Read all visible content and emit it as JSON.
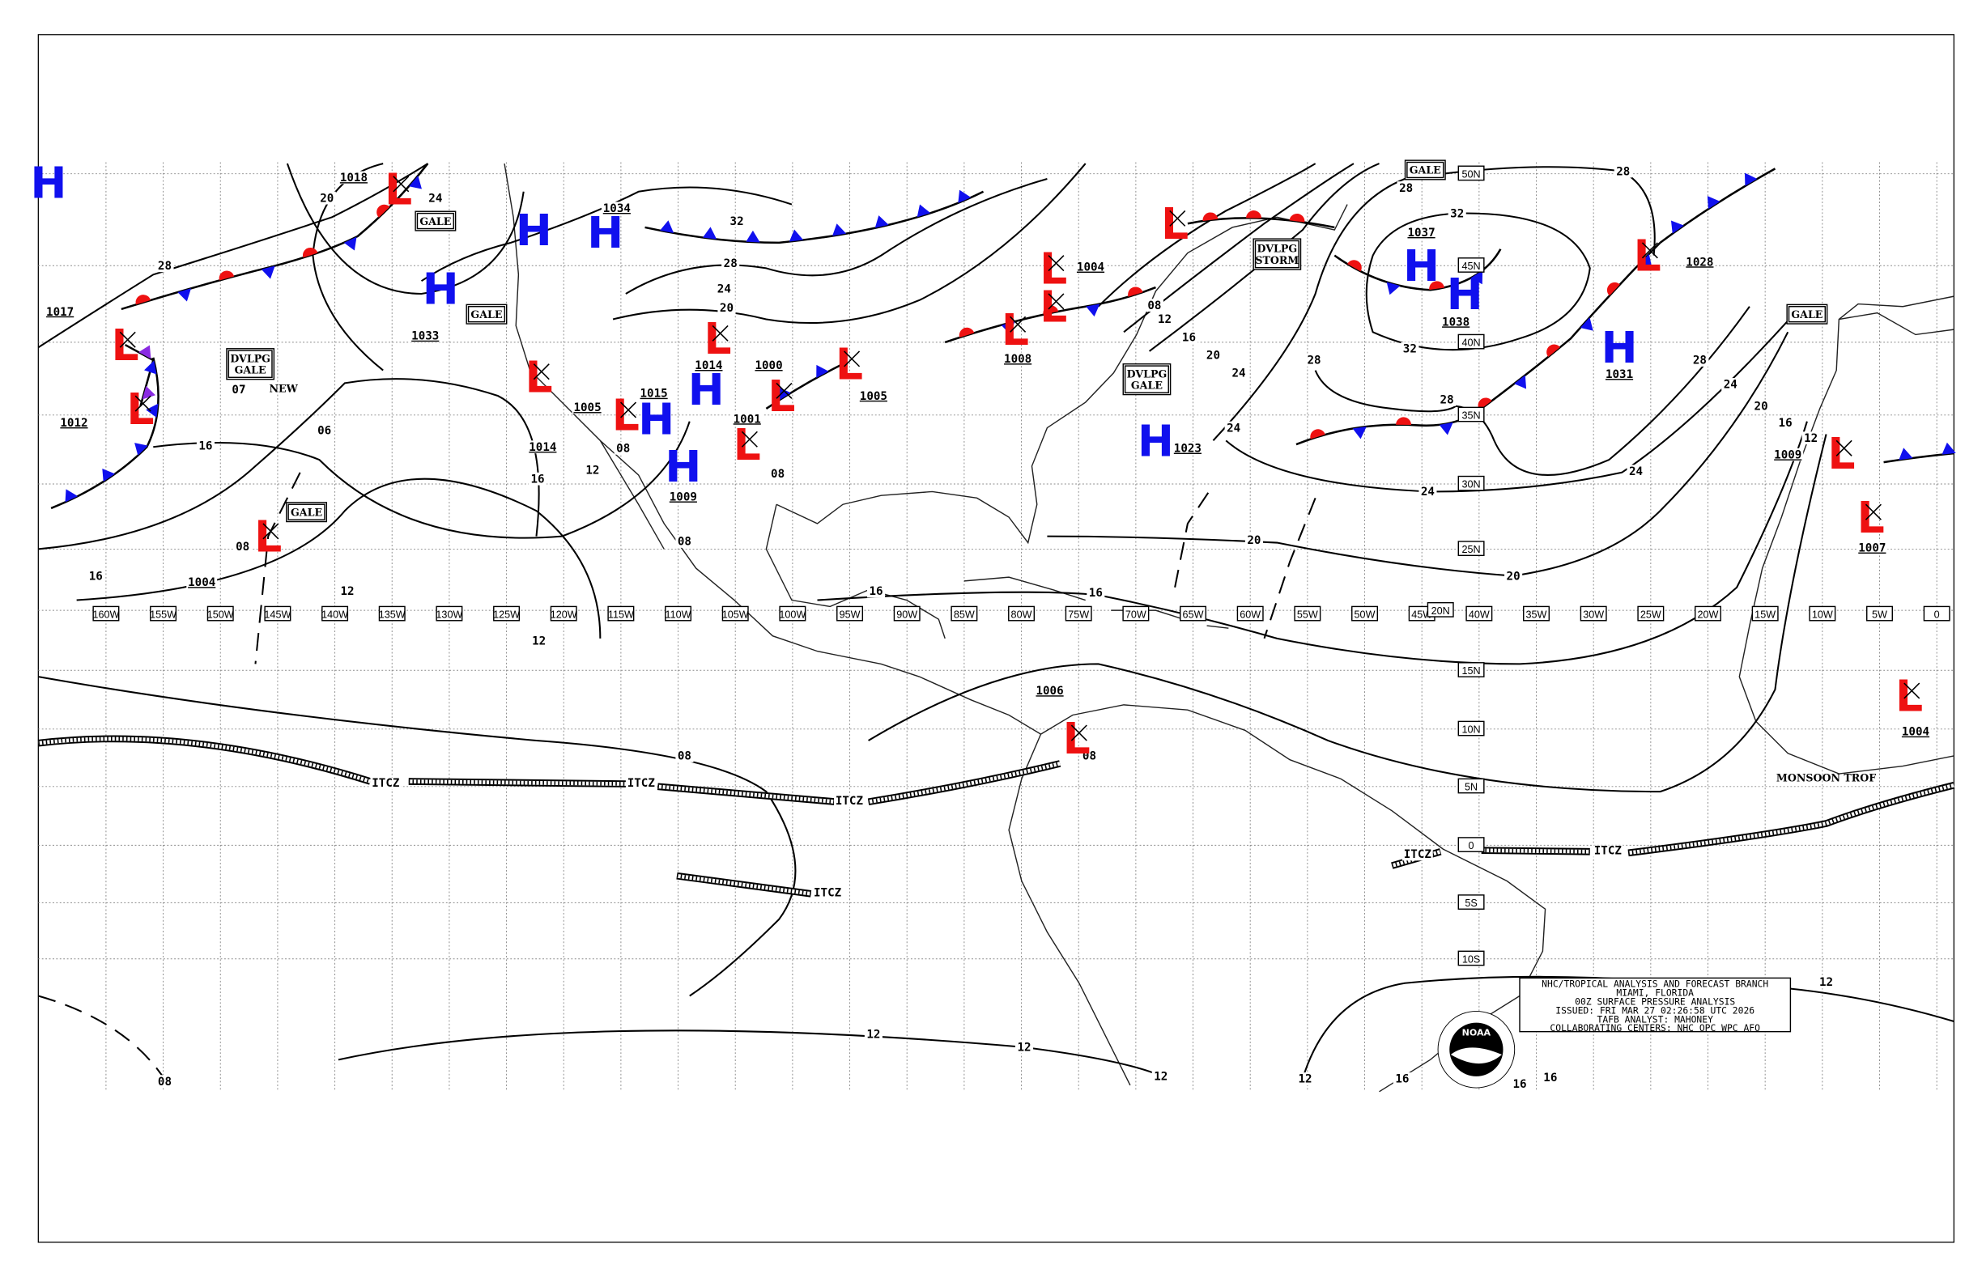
{
  "info_box": {
    "line1": "NHC/TROPICAL ANALYSIS AND FORECAST BRANCH",
    "line2": "MIAMI, FLORIDA",
    "line3": "00Z SURFACE PRESSURE ANALYSIS",
    "line4": "ISSUED: FRI MAR 27 02:26:58 UTC 2026",
    "line5": "TAFB ANALYST: MAHONEY",
    "line6": "COLLABORATING CENTERS: NHC OPC WPC AFO"
  },
  "logo": {
    "text": "NOAA"
  },
  "longitude_labels": [
    "160W",
    "155W",
    "150W",
    "145W",
    "140W",
    "135W",
    "130W",
    "125W",
    "120W",
    "115W",
    "110W",
    "105W",
    "100W",
    "95W",
    "90W",
    "85W",
    "80W",
    "75W",
    "70W",
    "65W",
    "60W",
    "55W",
    "50W",
    "45W",
    "40W",
    "35W",
    "30W",
    "25W",
    "20W",
    "15W",
    "10W",
    "5W",
    "0"
  ],
  "latitude_labels": [
    "50N",
    "45N",
    "40N",
    "35N",
    "30N",
    "25N",
    "20N",
    "15N",
    "10N",
    "5N",
    "0",
    "5S",
    "10S"
  ],
  "pressure_centers": [
    {
      "type": "H",
      "value": ""
    },
    {
      "type": "L",
      "value": "1018"
    },
    {
      "type": "H",
      "value": "1033"
    },
    {
      "type": "L",
      "value": "1017"
    },
    {
      "type": "L",
      "value": "1012"
    },
    {
      "type": "L",
      "value": "1004"
    },
    {
      "type": "H",
      "value": ""
    },
    {
      "type": "H",
      "value": "1034"
    },
    {
      "type": "L",
      "value": "1014"
    },
    {
      "type": "L",
      "value": "1005"
    },
    {
      "type": "H",
      "value": "1015"
    },
    {
      "type": "H",
      "value": "1014"
    },
    {
      "type": "H",
      "value": "1009"
    },
    {
      "type": "L",
      "value": ""
    },
    {
      "type": "L",
      "value": "1000"
    },
    {
      "type": "L",
      "value": "1001"
    },
    {
      "type": "L",
      "value": "1005"
    },
    {
      "type": "L",
      "value": "1008"
    },
    {
      "type": "L",
      "value": ""
    },
    {
      "type": "L",
      "value": "1004"
    },
    {
      "type": "L",
      "value": ""
    },
    {
      "type": "H",
      "value": "1023"
    },
    {
      "type": "H",
      "value": "1037"
    },
    {
      "type": "H",
      "value": "1038"
    },
    {
      "type": "L",
      "value": "1028"
    },
    {
      "type": "H",
      "value": "1031"
    },
    {
      "type": "L",
      "value": "1009"
    },
    {
      "type": "L",
      "value": "1007"
    },
    {
      "type": "L",
      "value": "1004"
    },
    {
      "type": "L",
      "value": "1006"
    }
  ],
  "isobar_labels": [
    "20",
    "24",
    "28",
    "16",
    "16",
    "12",
    "12",
    "16",
    "12",
    "08",
    "08",
    "08",
    "16",
    "16",
    "32",
    "28",
    "24",
    "20",
    "08",
    "12",
    "16",
    "20",
    "24",
    "24",
    "28",
    "28",
    "32",
    "32",
    "28",
    "28",
    "24",
    "24",
    "28",
    "24",
    "20",
    "16",
    "12",
    "20",
    "20",
    "08",
    "08",
    "12",
    "12",
    "12",
    "08",
    "12",
    "12",
    "16",
    "16",
    "16",
    "08",
    "07",
    "06"
  ],
  "map_annotations": [
    {
      "kind": "box",
      "lines": [
        "GALE"
      ]
    },
    {
      "kind": "box",
      "lines": [
        "GALE"
      ]
    },
    {
      "kind": "box",
      "lines": [
        "GALE"
      ]
    },
    {
      "kind": "box",
      "lines": [
        "GALE"
      ]
    },
    {
      "kind": "box",
      "lines": [
        "GALE"
      ]
    },
    {
      "kind": "box",
      "lines": [
        "DVLPG",
        "GALE"
      ]
    },
    {
      "kind": "box",
      "lines": [
        "DVLPG",
        "GALE"
      ]
    },
    {
      "kind": "box",
      "lines": [
        "DVLPG",
        "STORM"
      ]
    },
    {
      "kind": "text",
      "lines": [
        "NEW"
      ]
    },
    {
      "kind": "text",
      "lines": [
        "MONSOON TROF"
      ]
    }
  ],
  "itcz_labels": [
    "ITCZ",
    "ITCZ",
    "ITCZ",
    "ITCZ",
    "ITCZ",
    "ITCZ"
  ],
  "colors": {
    "high": "#1010ee",
    "low": "#ee1111",
    "cold_front": "#1010ee",
    "warm_front": "#ee1111",
    "occluded": "#8a2be2"
  }
}
